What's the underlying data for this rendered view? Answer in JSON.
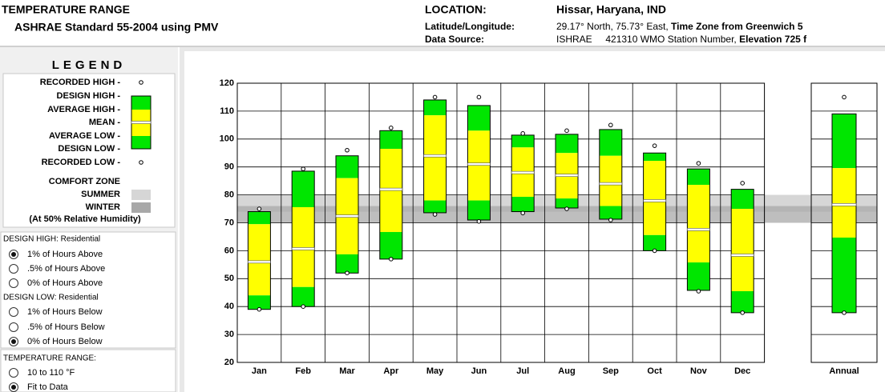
{
  "header": {
    "title": "TEMPERATURE RANGE",
    "subtitle": "ASHRAE Standard 55-2004 using PMV",
    "location_label": "LOCATION:",
    "location": "Hissar, Haryana, IND",
    "latlon_label": "Latitude/Longitude:",
    "latlon": [
      "29.17° North, 75.73° East, ",
      "Time Zone from Greenwich 5"
    ],
    "source_label": "Data Source:",
    "source": [
      "ISHRAE     421310 WMO Station Number, ",
      "Elevation 725 f"
    ]
  },
  "legend": {
    "title": "LEGEND"
  },
  "options": [
    {
      "title": "DESIGN HIGH:  Residential",
      "items": [
        {
          "label": "1% of Hours Above",
          "selected": true
        },
        {
          "label": ".5% of Hours Above",
          "selected": false
        },
        {
          "label": "0% of Hours Above",
          "selected": false
        }
      ]
    },
    {
      "title": "DESIGN LOW:  Residential",
      "items": [
        {
          "label": "1% of Hours Below",
          "selected": false
        },
        {
          "label": ".5% of Hours Below",
          "selected": false
        },
        {
          "label": "0% of Hours Below",
          "selected": true
        }
      ]
    },
    {
      "title": "TEMPERATURE RANGE:",
      "items": [
        {
          "label": "10 to 110 °F",
          "selected": false
        },
        {
          "label": "Fit to Data",
          "selected": true
        }
      ]
    }
  ],
  "chart_data": {
    "type": "range",
    "categories": [
      "Jan",
      "Feb",
      "Mar",
      "Apr",
      "May",
      "Jun",
      "Jul",
      "Aug",
      "Sep",
      "Oct",
      "Nov",
      "Dec",
      "Annual"
    ],
    "ylim": [
      20,
      120
    ],
    "yticks": [
      20,
      30,
      40,
      50,
      60,
      70,
      80,
      90,
      100,
      110,
      120
    ],
    "grid": true,
    "series": [
      {
        "name": "RECORDED HIGH -",
        "color": "#ffffff",
        "values": [
          75,
          89.3,
          96,
          104,
          115,
          115,
          102,
          103,
          105,
          97.6,
          91.3,
          84.2,
          115
        ]
      },
      {
        "name": "DESIGN HIGH -",
        "color": "#00e600",
        "values": [
          74,
          88.5,
          94,
          103,
          114,
          112,
          101.4,
          101.7,
          103.4,
          95,
          89.3,
          82,
          109
        ]
      },
      {
        "name": "AVERAGE HIGH -",
        "color": "#ffff00",
        "values": [
          69.5,
          75.6,
          86,
          96.5,
          108.5,
          103,
          97,
          95,
          94,
          92.2,
          83.6,
          75,
          89.6
        ]
      },
      {
        "name": "MEAN -",
        "color": "#ffffff",
        "values": [
          56,
          60.7,
          72.4,
          82,
          94,
          91,
          88,
          87,
          84,
          77.9,
          67.6,
          58.4,
          76.5
        ]
      },
      {
        "name": "AVERAGE LOW -",
        "color": "#ffff00",
        "values": [
          44,
          47,
          58.7,
          66.7,
          78,
          78,
          79.3,
          78.7,
          76,
          65.6,
          55.8,
          45.5,
          64.7
        ]
      },
      {
        "name": "DESIGN LOW -",
        "color": "#00e600",
        "values": [
          39,
          40,
          52,
          57,
          73.6,
          71,
          74,
          75.3,
          71.3,
          60,
          45.8,
          37.8,
          37.8
        ]
      },
      {
        "name": "RECORDED LOW -",
        "color": "#ffffff",
        "values": [
          39,
          40,
          52,
          57,
          73,
          70.5,
          73.5,
          75,
          71,
          60,
          45.5,
          37.8,
          37.8
        ]
      }
    ],
    "comfort_zone": {
      "title": "COMFORT ZONE",
      "note": "(At 50% Relative Humidity)",
      "bands": [
        {
          "name": "SUMMER",
          "range": [
            74,
            80
          ],
          "color": "#d6d6d6"
        },
        {
          "name": "WINTER",
          "range": [
            70,
            76
          ],
          "color": "#a8a8a8"
        }
      ]
    }
  }
}
